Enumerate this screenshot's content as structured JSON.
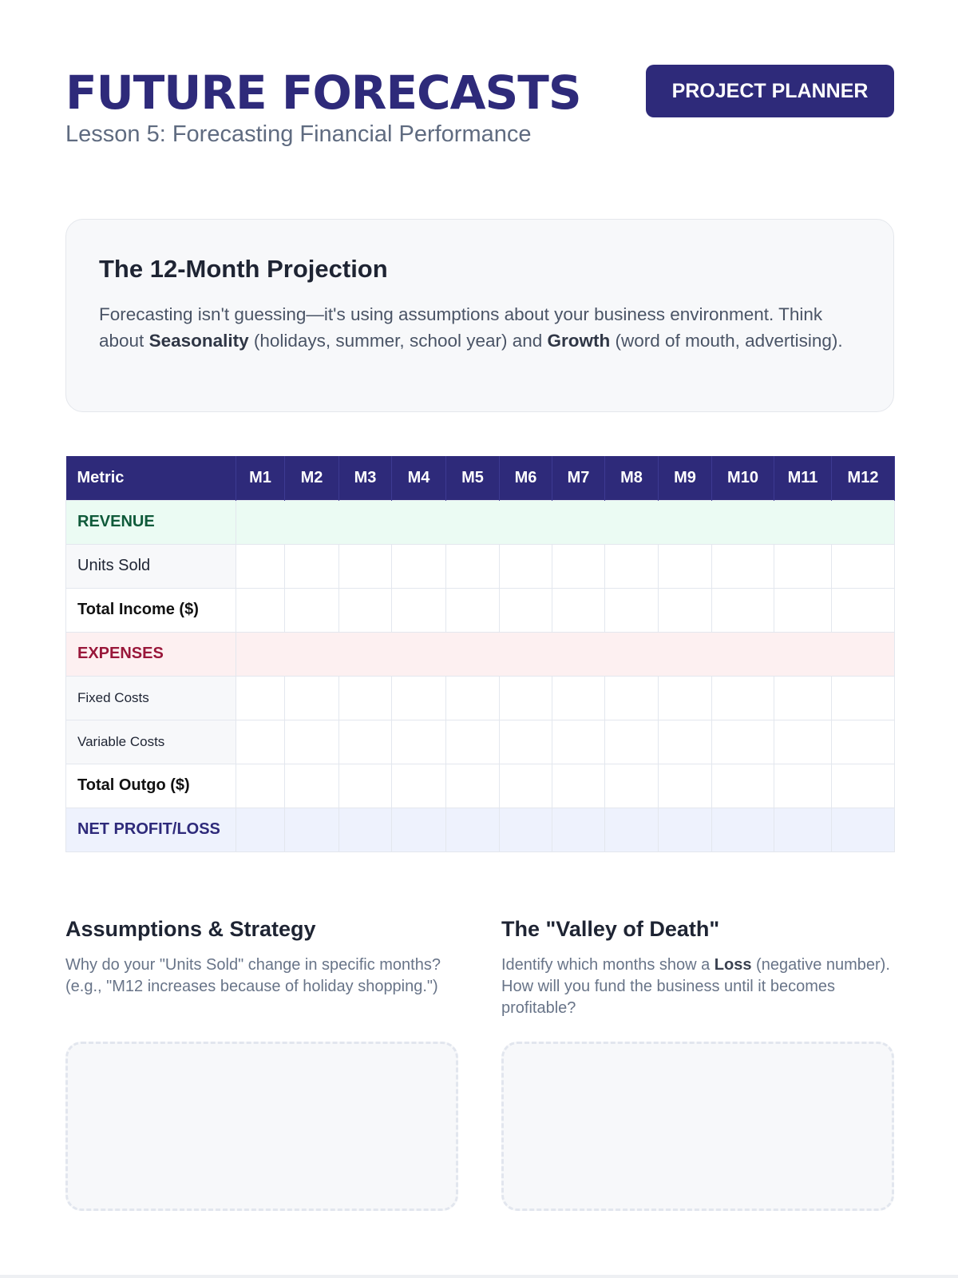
{
  "header": {
    "title": "FUTURE FORECASTS",
    "subtitle": "Lesson 5: Forecasting Financial Performance",
    "badge": "PROJECT PLANNER"
  },
  "intro": {
    "heading": "The 12-Month Projection",
    "text_1": "Forecasting isn't guessing—it's using assumptions about your business environment. Think about ",
    "bold_1": "Seasonality",
    "text_2": " (holidays, summer, school year) and ",
    "bold_2": "Growth",
    "text_3": " (word of mouth, advertising)."
  },
  "table": {
    "metric_header": "Metric",
    "months": [
      "M1",
      "M2",
      "M3",
      "M4",
      "M5",
      "M6",
      "M7",
      "M8",
      "M9",
      "M10",
      "M11",
      "M12"
    ],
    "rows": {
      "revenue": "REVENUE",
      "units_sold": "Units Sold",
      "total_income": "Total Income ($)",
      "expenses": "EXPENSES",
      "fixed_costs": "Fixed Costs",
      "variable_costs": "Variable Costs",
      "total_outgo": "Total Outgo ($)",
      "net": "NET PROFIT/LOSS"
    }
  },
  "assumptions": {
    "heading": "Assumptions & Strategy",
    "text": "Why do your \"Units Sold\" change in specific months? (e.g., \"M12 increases because of holiday shopping.\")"
  },
  "valley": {
    "heading": "The \"Valley of Death\"",
    "text_1": "Identify which months show a ",
    "bold": "Loss",
    "text_2": " (negative number). How will you fund the business until it becomes profitable?"
  },
  "colors": {
    "brand": "#2e2a7a",
    "revenue": "#0f5a3a",
    "expenses": "#99173a"
  }
}
